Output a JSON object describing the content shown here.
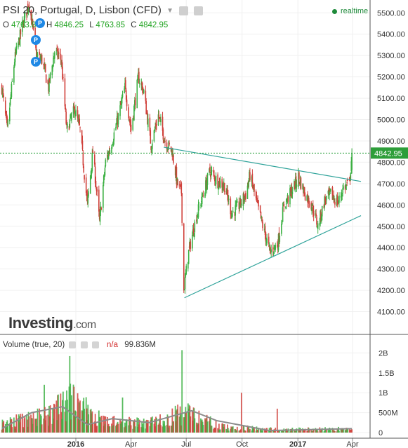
{
  "header": {
    "title": "PSI 20, Portugal, D, Lisbon (CFD)",
    "realtime_label": "realtime",
    "ohlc": {
      "o_label": "O",
      "o": "4763.85",
      "h_label": "H",
      "h": "4846.25",
      "l_label": "L",
      "l": "4763.85",
      "c_label": "C",
      "c": "4842.95"
    },
    "marker_label": "P"
  },
  "logo": {
    "main": "Investing",
    "suffix": ".com"
  },
  "volume_header": {
    "label": "Volume (true, 20)",
    "na": "n/a",
    "value": "99.836M"
  },
  "colors": {
    "up": "#3cb043",
    "down": "#d0413b",
    "trendline": "#2fa39a",
    "price_line": "#1a9a2e",
    "ma": "#8c8c8c",
    "grid": "#f0f0f0"
  },
  "chart_data": [
    {
      "type": "candlestick",
      "title": "PSI 20, Portugal, D, Lisbon (CFD)",
      "x_ticks": [
        "2016",
        "Apr",
        "Jul",
        "Oct",
        "2017",
        "Apr"
      ],
      "y_ticks": [
        4100,
        4200,
        4300,
        4400,
        4500,
        4600,
        4700,
        4800,
        4900,
        5000,
        5100,
        5200,
        5300,
        5400,
        5500
      ],
      "ylim": [
        4000,
        5560
      ],
      "last_price": 4842.95,
      "last_price_label": "4842.95",
      "close_path": [
        [
          "2015-09-01",
          5150
        ],
        [
          "2015-09-10",
          4950
        ],
        [
          "2015-09-22",
          5280
        ],
        [
          "2015-10-06",
          5450
        ],
        [
          "2015-10-16",
          5550
        ],
        [
          "2015-10-28",
          5300
        ],
        [
          "2015-11-06",
          5280
        ],
        [
          "2015-11-17",
          5150
        ],
        [
          "2015-11-27",
          5320
        ],
        [
          "2015-12-08",
          5280
        ],
        [
          "2015-12-17",
          4950
        ],
        [
          "2015-12-30",
          5050
        ],
        [
          "2016-01-08",
          4950
        ],
        [
          "2016-01-20",
          4600
        ],
        [
          "2016-01-29",
          4850
        ],
        [
          "2016-02-09",
          4520
        ],
        [
          "2016-02-19",
          4800
        ],
        [
          "2016-03-01",
          4900
        ],
        [
          "2016-03-10",
          5000
        ],
        [
          "2016-03-22",
          5150
        ],
        [
          "2016-04-01",
          4950
        ],
        [
          "2016-04-13",
          5200
        ],
        [
          "2016-04-22",
          5130
        ],
        [
          "2016-05-04",
          4880
        ],
        [
          "2016-05-16",
          5020
        ],
        [
          "2016-05-27",
          4900
        ],
        [
          "2016-06-08",
          4850
        ],
        [
          "2016-06-16",
          4700
        ],
        [
          "2016-06-23",
          4660
        ],
        [
          "2016-06-27",
          4200
        ],
        [
          "2016-07-05",
          4380
        ],
        [
          "2016-07-18",
          4550
        ],
        [
          "2016-07-29",
          4650
        ],
        [
          "2016-08-09",
          4760
        ],
        [
          "2016-08-22",
          4710
        ],
        [
          "2016-09-02",
          4690
        ],
        [
          "2016-09-14",
          4560
        ],
        [
          "2016-09-27",
          4600
        ],
        [
          "2016-10-07",
          4650
        ],
        [
          "2016-10-14",
          4740
        ],
        [
          "2016-10-25",
          4610
        ],
        [
          "2016-11-07",
          4470
        ],
        [
          "2016-11-16",
          4380
        ],
        [
          "2016-11-29",
          4420
        ],
        [
          "2016-12-09",
          4600
        ],
        [
          "2016-12-21",
          4660
        ],
        [
          "2017-01-02",
          4730
        ],
        [
          "2017-01-13",
          4650
        ],
        [
          "2017-01-24",
          4600
        ],
        [
          "2017-02-03",
          4500
        ],
        [
          "2017-02-14",
          4620
        ],
        [
          "2017-02-24",
          4650
        ],
        [
          "2017-03-08",
          4610
        ],
        [
          "2017-03-17",
          4680
        ],
        [
          "2017-03-27",
          4700
        ],
        [
          "2017-03-31",
          4842.95
        ]
      ],
      "annotations": [
        {
          "type": "trendline",
          "from": [
            "2016-05-25",
            4870
          ],
          "to": [
            "2017-04-15",
            4710
          ]
        },
        {
          "type": "trendline",
          "from": [
            "2016-06-28",
            4165
          ],
          "to": [
            "2017-04-15",
            4550
          ]
        },
        {
          "type": "horizontal_line",
          "y": 4842.95
        }
      ]
    },
    {
      "type": "bar",
      "title": "Volume (true, 20)",
      "y_ticks": [
        "0",
        "500M",
        "1B",
        "1.5B",
        "2B"
      ],
      "ylim": [
        0,
        2.2
      ],
      "unit": "B",
      "series": [
        {
          "type": "bar",
          "values_profile": [
            [
              "2015-09-01",
              0.25
            ],
            [
              "2015-11-15",
              0.45
            ],
            [
              "2015-12-20",
              0.9
            ],
            [
              "2016-02-15",
              0.3
            ],
            [
              "2016-05-01",
              0.25
            ],
            [
              "2016-06-25",
              0.55
            ],
            [
              "2016-09-01",
              0.15
            ],
            [
              "2016-12-01",
              0.08
            ],
            [
              "2017-03-31",
              0.1
            ]
          ]
        },
        {
          "type": "line",
          "values_profile": [
            [
              "2015-09-01",
              0.1
            ],
            [
              "2015-10-20",
              0.5
            ],
            [
              "2015-12-10",
              0.65
            ],
            [
              "2016-01-20",
              0.2
            ],
            [
              "2016-03-01",
              0.35
            ],
            [
              "2016-05-01",
              0.25
            ],
            [
              "2016-07-10",
              0.55
            ],
            [
              "2016-08-20",
              0.3
            ],
            [
              "2016-10-01",
              0.18
            ],
            [
              "2016-11-15",
              0.05
            ],
            [
              "2017-03-31",
              0.1
            ]
          ]
        }
      ],
      "spikes": [
        {
          "date": "2015-12-22",
          "value": 1.92
        },
        {
          "date": "2016-06-24",
          "value": 2.07
        },
        {
          "date": "2016-09-30",
          "value": 1.0
        },
        {
          "date": "2015-11-10",
          "value": 1.2
        },
        {
          "date": "2016-03-18",
          "value": 0.88
        },
        {
          "date": "2016-11-28",
          "value": 0.6
        }
      ]
    }
  ]
}
